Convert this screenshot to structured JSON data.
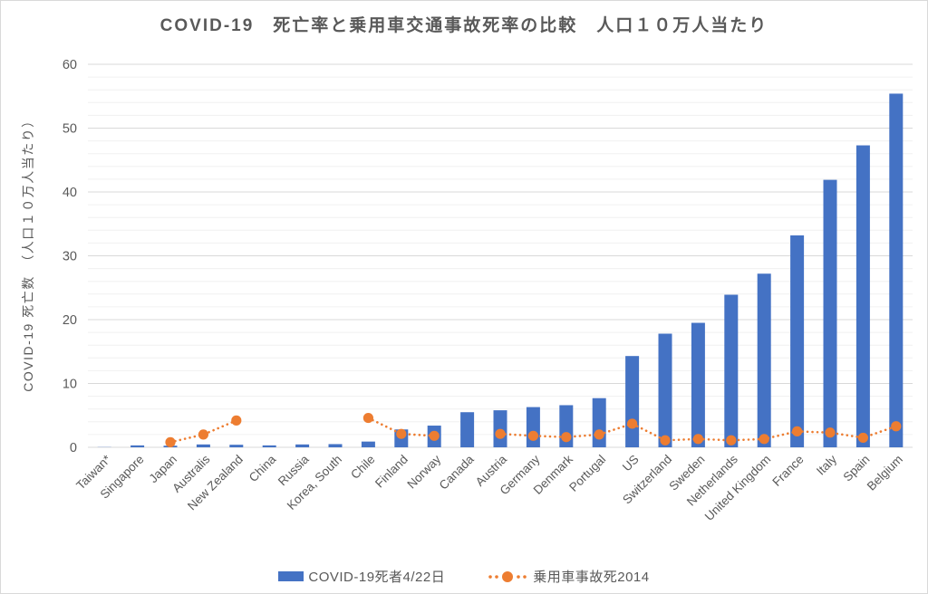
{
  "title": "COVID-19　死亡率と乗用車交通事故死率の比較　人口１０万人当たり",
  "colors": {
    "bar": "#4472C4",
    "line": "#ED7D31",
    "text": "#595959",
    "gridline_major": "#d9d9d9",
    "gridline_minor": "#f0f0f0"
  },
  "chart_data": {
    "type": "bar",
    "title": "COVID-19　死亡率と乗用車交通事故死率の比較　人口１０万人当たり",
    "xlabel": "",
    "ylabel": "COVID-19 死亡数　（人口１０万人当たり）",
    "ylim": [
      0,
      60
    ],
    "ytick_step": 10,
    "minor_grid_step": 2,
    "grid": "horizontal",
    "legend_position": "bottom",
    "categories": [
      "Taiwan*",
      "Singapore",
      "Japan",
      "Australis",
      "New Zealand",
      "China",
      "Russia",
      "Korea, South",
      "Chile",
      "Finland",
      "Norway",
      "Canada",
      "Austria",
      "Germany",
      "Denmark",
      "Portugal",
      "US",
      "Switzerland",
      "Sweden",
      "Netherlands",
      "United Kingdom",
      "France",
      "Italy",
      "Spain",
      "Belgium"
    ],
    "series": [
      {
        "name": "COVID-19死者4/22日",
        "type": "bar",
        "color": "#4472C4",
        "values": [
          0.03,
          0.3,
          0.25,
          0.45,
          0.4,
          0.3,
          0.45,
          0.5,
          0.9,
          2.8,
          3.4,
          5.5,
          5.8,
          6.3,
          6.6,
          7.7,
          14.3,
          17.8,
          19.5,
          23.9,
          27.2,
          33.2,
          41.9,
          47.3,
          55.4
        ]
      },
      {
        "name": "乗用車事故死2014",
        "type": "line",
        "line_style": "dotted-with-markers",
        "color": "#ED7D31",
        "values": [
          null,
          null,
          0.8,
          2.0,
          4.2,
          null,
          null,
          null,
          4.6,
          2.1,
          1.8,
          null,
          2.1,
          1.8,
          1.6,
          2.0,
          3.7,
          1.1,
          1.3,
          1.1,
          1.3,
          2.5,
          2.3,
          1.5,
          3.3
        ]
      }
    ]
  }
}
